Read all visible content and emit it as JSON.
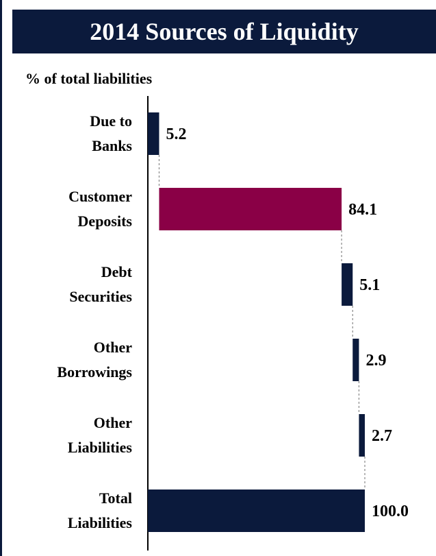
{
  "header": {
    "title": "2014 Sources of Liquidity"
  },
  "subtitle": "% of total liabilities",
  "colors": {
    "navy": "#0b1a3c",
    "highlight": "#8a0046",
    "connector": "#888888"
  },
  "chart_data": {
    "type": "bar",
    "orientation": "horizontal-waterfall",
    "categories": [
      "Due to Banks",
      "Customer Deposits",
      "Debt Securities",
      "Other Borrowings",
      "Other Liabilities",
      "Total Liabilities"
    ],
    "category_lines": [
      [
        "Due to",
        "Banks"
      ],
      [
        "Customer",
        "Deposits"
      ],
      [
        "Debt",
        "Securities"
      ],
      [
        "Other",
        "Borrowings"
      ],
      [
        "Other",
        "Liabilities"
      ],
      [
        "Total",
        "Liabilities"
      ]
    ],
    "values": [
      5.2,
      84.1,
      5.1,
      2.9,
      2.7,
      100.0
    ],
    "value_labels": [
      "5.2",
      "84.1",
      "5.1",
      "2.9",
      "2.7",
      "100.0"
    ],
    "title": "2014 Sources of Liquidity",
    "xlabel": "% of total liabilities",
    "xlim": [
      0,
      100
    ]
  }
}
